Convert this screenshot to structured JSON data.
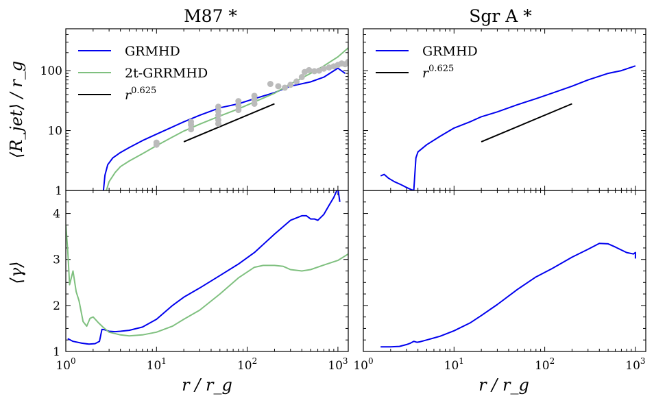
{
  "colors": {
    "grmhd": "#0000ee",
    "two_t": "#7fc07f",
    "powerlaw": "#000000",
    "observed": "#bbbbbb"
  },
  "chart_data": [
    {
      "panel": "m87-rjet",
      "type": "line",
      "title": "M87 *",
      "ylabel": "⟨R_jet⟩ / r_g",
      "xlabel": "",
      "xscale": "log",
      "yscale": "log",
      "xlim": [
        1,
        1300
      ],
      "ylim": [
        1,
        500
      ],
      "xticks": [],
      "yticks": [
        "1",
        "10",
        "100"
      ],
      "legend": "top-left",
      "series": [
        {
          "name": "GRMHD",
          "key": "grmhd",
          "x": [
            2.6,
            2.7,
            2.9,
            3.3,
            4,
            5,
            7,
            10,
            15,
            20,
            30,
            50,
            80,
            120,
            200,
            300,
            500,
            700,
            1000,
            1200
          ],
          "values": [
            1,
            1.8,
            2.7,
            3.5,
            4.3,
            5.2,
            6.8,
            8.7,
            11.5,
            14,
            18,
            24,
            28,
            34,
            43,
            55,
            65,
            78,
            110,
            90
          ]
        },
        {
          "name": "2t-GRRMHD",
          "key": "two_t",
          "x": [
            2.8,
            3,
            3.5,
            4,
            5,
            7,
            10,
            15,
            20,
            30,
            50,
            80,
            120,
            200,
            300,
            500,
            700,
            1000,
            1300
          ],
          "values": [
            1,
            1.4,
            2,
            2.5,
            3.1,
            4.1,
            5.6,
            7.8,
            9.8,
            12.8,
            17.5,
            23,
            30,
            42,
            60,
            90,
            120,
            170,
            240
          ]
        },
        {
          "name": "r^0.625",
          "key": "powerlaw",
          "x": [
            20,
            200
          ],
          "values": [
            6.5,
            28
          ]
        },
        {
          "name": "",
          "key": "observed",
          "x": [
            10,
            10,
            24,
            24,
            24,
            48,
            48,
            48,
            48,
            48,
            80,
            80,
            80,
            120,
            120,
            120,
            180,
            220,
            260,
            300,
            350,
            400,
            430,
            480,
            550,
            620,
            700,
            800,
            900,
            1000,
            1100,
            1200,
            1300
          ],
          "values": [
            5.8,
            6.3,
            10.5,
            12.5,
            14,
            13,
            15,
            18,
            21,
            25,
            22,
            26,
            31,
            28,
            33,
            38,
            60,
            55,
            52,
            58,
            66,
            78,
            95,
            102,
            98,
            100,
            108,
            113,
            118,
            125,
            132,
            128,
            140
          ]
        }
      ]
    },
    {
      "panel": "sgra-rjet",
      "type": "line",
      "title": "Sgr A *",
      "ylabel": "",
      "xlabel": "",
      "xscale": "log",
      "yscale": "log",
      "xlim": [
        1,
        1300
      ],
      "ylim": [
        1,
        500
      ],
      "legend": "top-left",
      "series": [
        {
          "name": "GRMHD",
          "key": "grmhd",
          "x": [
            1.55,
            1.7,
            1.9,
            2.2,
            2.6,
            3,
            3.4,
            3.6,
            3.8,
            4,
            5,
            7,
            10,
            15,
            20,
            30,
            50,
            80,
            120,
            200,
            300,
            500,
            700,
            1000
          ],
          "values": [
            1.75,
            1.85,
            1.6,
            1.4,
            1.25,
            1.12,
            1.03,
            1.0,
            3.5,
            4.4,
            5.8,
            8,
            11,
            14,
            17,
            20.5,
            27,
            34,
            42,
            55,
            70,
            90,
            100,
            120
          ]
        },
        {
          "name": "r^0.625",
          "key": "powerlaw",
          "x": [
            20,
            200
          ],
          "values": [
            6.5,
            28
          ]
        }
      ]
    },
    {
      "panel": "m87-gamma",
      "type": "line",
      "ylabel": "⟨γ⟩",
      "xlabel": "r / r_g",
      "xscale": "log",
      "yscale": "linear",
      "xlim": [
        1,
        1300
      ],
      "ylim": [
        1,
        4.5
      ],
      "yticks": [
        "1",
        "2",
        "3",
        "4"
      ],
      "xticks": [
        "10^0",
        "10^1",
        "10^2",
        "10^3"
      ],
      "series": [
        {
          "name": "GRMHD",
          "key": "grmhd",
          "x": [
            1.05,
            1.2,
            1.5,
            1.8,
            2.1,
            2.35,
            2.5,
            2.7,
            3,
            3.5,
            4,
            5,
            7,
            10,
            15,
            20,
            30,
            50,
            80,
            120,
            200,
            300,
            400,
            450,
            500,
            550,
            600,
            700,
            800,
            900,
            1000,
            1050
          ],
          "values": [
            1.28,
            1.22,
            1.18,
            1.16,
            1.17,
            1.22,
            1.48,
            1.47,
            1.44,
            1.43,
            1.44,
            1.46,
            1.53,
            1.7,
            2.0,
            2.18,
            2.38,
            2.65,
            2.9,
            3.15,
            3.55,
            3.85,
            3.95,
            3.95,
            3.88,
            3.88,
            3.85,
            3.98,
            4.18,
            4.35,
            4.55,
            4.25
          ]
        },
        {
          "name": "2t-GRRMHD",
          "key": "two_t",
          "x": [
            1.0,
            1.05,
            1.1,
            1.15,
            1.2,
            1.3,
            1.4,
            1.55,
            1.7,
            1.85,
            2,
            2.3,
            2.6,
            3,
            4,
            5,
            7,
            10,
            15,
            20,
            30,
            50,
            80,
            120,
            150,
            200,
            250,
            300,
            400,
            500,
            700,
            1000,
            1300
          ],
          "values": [
            3.75,
            3.2,
            2.45,
            2.6,
            2.75,
            2.3,
            2.1,
            1.65,
            1.55,
            1.72,
            1.75,
            1.62,
            1.52,
            1.42,
            1.36,
            1.34,
            1.36,
            1.42,
            1.55,
            1.7,
            1.9,
            2.25,
            2.6,
            2.83,
            2.87,
            2.87,
            2.85,
            2.78,
            2.75,
            2.78,
            2.88,
            2.98,
            3.12
          ]
        }
      ]
    },
    {
      "panel": "sgra-gamma",
      "type": "line",
      "ylabel": "",
      "xlabel": "r / r_g",
      "xscale": "log",
      "yscale": "linear",
      "xlim": [
        1,
        1300
      ],
      "ylim": [
        1,
        4.5
      ],
      "xticks": [
        "10^0",
        "10^1",
        "10^2",
        "10^3"
      ],
      "series": [
        {
          "name": "GRMHD",
          "key": "grmhd",
          "x": [
            1.55,
            2,
            2.5,
            3,
            3.3,
            3.6,
            3.9,
            4.2,
            5,
            7,
            10,
            15,
            20,
            30,
            50,
            80,
            120,
            200,
            300,
            400,
            500,
            600,
            800,
            950,
            1000,
            1000
          ],
          "values": [
            1.1,
            1.1,
            1.11,
            1.15,
            1.18,
            1.22,
            1.2,
            1.21,
            1.25,
            1.33,
            1.45,
            1.62,
            1.78,
            2.02,
            2.35,
            2.62,
            2.8,
            3.05,
            3.22,
            3.35,
            3.34,
            3.27,
            3.15,
            3.12,
            3.15,
            3.02
          ]
        }
      ]
    }
  ]
}
